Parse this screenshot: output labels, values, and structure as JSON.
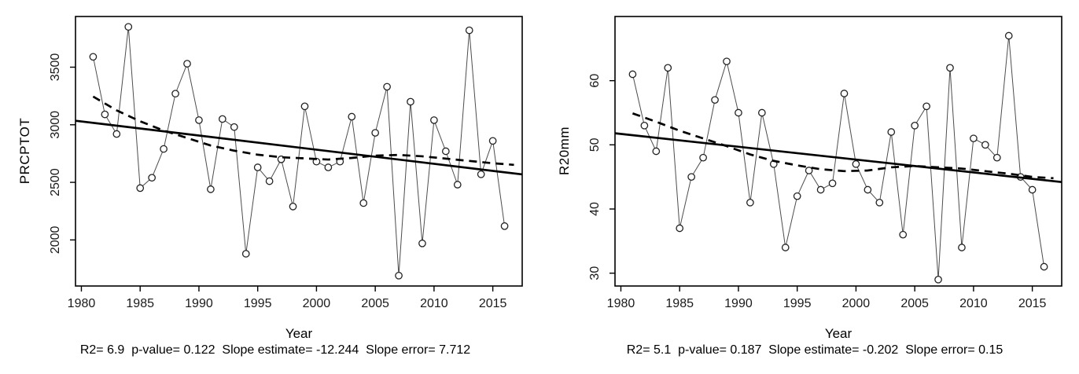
{
  "figure": {
    "background": "#ffffff",
    "axis_color": "#000000",
    "series_line_color": "#4d4d4d",
    "marker": "open-circle"
  },
  "chart_data": [
    {
      "type": "line",
      "title": "",
      "xlabel": "Year",
      "ylabel": "PRCPTOT",
      "caption": "R2= 6.9  p-value= 0.122  Slope estimate= -12.244  Slope error= 7.712",
      "stats": {
        "r2": 6.9,
        "p_value": 0.122,
        "slope_estimate": -12.244,
        "slope_error": 7.712
      },
      "x": [
        1981,
        1982,
        1983,
        1984,
        1985,
        1986,
        1987,
        1988,
        1989,
        1990,
        1991,
        1992,
        1993,
        1994,
        1995,
        1996,
        1997,
        1998,
        1999,
        2000,
        2001,
        2002,
        2003,
        2004,
        2005,
        2006,
        2007,
        2008,
        2009,
        2010,
        2011,
        2012,
        2013,
        2014,
        2015,
        2016
      ],
      "values": [
        3590,
        3090,
        2920,
        3850,
        2450,
        2540,
        2790,
        3270,
        3530,
        3040,
        2440,
        3050,
        2980,
        1880,
        2630,
        2510,
        2700,
        2290,
        3160,
        2680,
        2630,
        2680,
        3070,
        2320,
        2930,
        3330,
        1690,
        3200,
        1970,
        3040,
        2770,
        2480,
        3820,
        2570,
        2860,
        2120
      ],
      "xticks": [
        1980,
        1985,
        1990,
        1995,
        2000,
        2005,
        2010,
        2015
      ],
      "yticks": [
        2000,
        2500,
        3000,
        3500
      ],
      "xlim": [
        1979.5,
        2017.5
      ],
      "ylim": [
        1600,
        3940
      ],
      "trend": {
        "x1": 1979.5,
        "y1": 3035,
        "x2": 2017.5,
        "y2": 2569
      },
      "lowess": [
        [
          1981,
          3245
        ],
        [
          1983,
          3125
        ],
        [
          1985,
          3030
        ],
        [
          1987,
          2950
        ],
        [
          1989,
          2885
        ],
        [
          1991,
          2820
        ],
        [
          1993,
          2775
        ],
        [
          1995,
          2740
        ],
        [
          1997,
          2718
        ],
        [
          1999,
          2708
        ],
        [
          2001,
          2698
        ],
        [
          2003,
          2712
        ],
        [
          2005,
          2732
        ],
        [
          2007,
          2738
        ],
        [
          2009,
          2726
        ],
        [
          2011,
          2706
        ],
        [
          2013,
          2686
        ],
        [
          2015,
          2666
        ],
        [
          2016.8,
          2652
        ]
      ],
      "grid": false,
      "legend_position": "none"
    },
    {
      "type": "line",
      "title": "",
      "xlabel": "Year",
      "ylabel": "R20mm",
      "caption": "R2= 5.1  p-value= 0.187  Slope estimate= -0.202  Slope error= 0.15",
      "stats": {
        "r2": 5.1,
        "p_value": 0.187,
        "slope_estimate": -0.202,
        "slope_error": 0.15
      },
      "x": [
        1981,
        1982,
        1983,
        1984,
        1985,
        1986,
        1987,
        1988,
        1989,
        1990,
        1991,
        1992,
        1993,
        1994,
        1995,
        1996,
        1997,
        1998,
        1999,
        2000,
        2001,
        2002,
        2003,
        2004,
        2005,
        2006,
        2007,
        2008,
        2009,
        2010,
        2011,
        2012,
        2013,
        2014,
        2015,
        2016
      ],
      "values": [
        61,
        53,
        49,
        62,
        37,
        45,
        48,
        57,
        63,
        55,
        41,
        55,
        47,
        34,
        42,
        46,
        43,
        44,
        58,
        47,
        43,
        41,
        52,
        36,
        53,
        56,
        29,
        62,
        34,
        51,
        50,
        48,
        67,
        45,
        43,
        31
      ],
      "xticks": [
        1980,
        1985,
        1990,
        1995,
        2000,
        2005,
        2010,
        2015
      ],
      "yticks": [
        30,
        40,
        50,
        60
      ],
      "xlim": [
        1979.5,
        2017.5
      ],
      "ylim": [
        28,
        70
      ],
      "trend": {
        "x1": 1979.5,
        "y1": 51.8,
        "x2": 2017.5,
        "y2": 44.2
      },
      "lowess": [
        [
          1981,
          54.9
        ],
        [
          1983,
          53.6
        ],
        [
          1985,
          52.2
        ],
        [
          1987,
          51.0
        ],
        [
          1989,
          49.8
        ],
        [
          1991,
          48.5
        ],
        [
          1993,
          47.5
        ],
        [
          1995,
          46.8
        ],
        [
          1997,
          46.2
        ],
        [
          1999,
          45.9
        ],
        [
          2001,
          46.0
        ],
        [
          2003,
          46.5
        ],
        [
          2005,
          46.7
        ],
        [
          2007,
          46.5
        ],
        [
          2009,
          46.3
        ],
        [
          2011,
          45.9
        ],
        [
          2013,
          45.5
        ],
        [
          2015,
          45.0
        ],
        [
          2016.8,
          44.8
        ]
      ],
      "grid": false,
      "legend_position": "none"
    }
  ]
}
